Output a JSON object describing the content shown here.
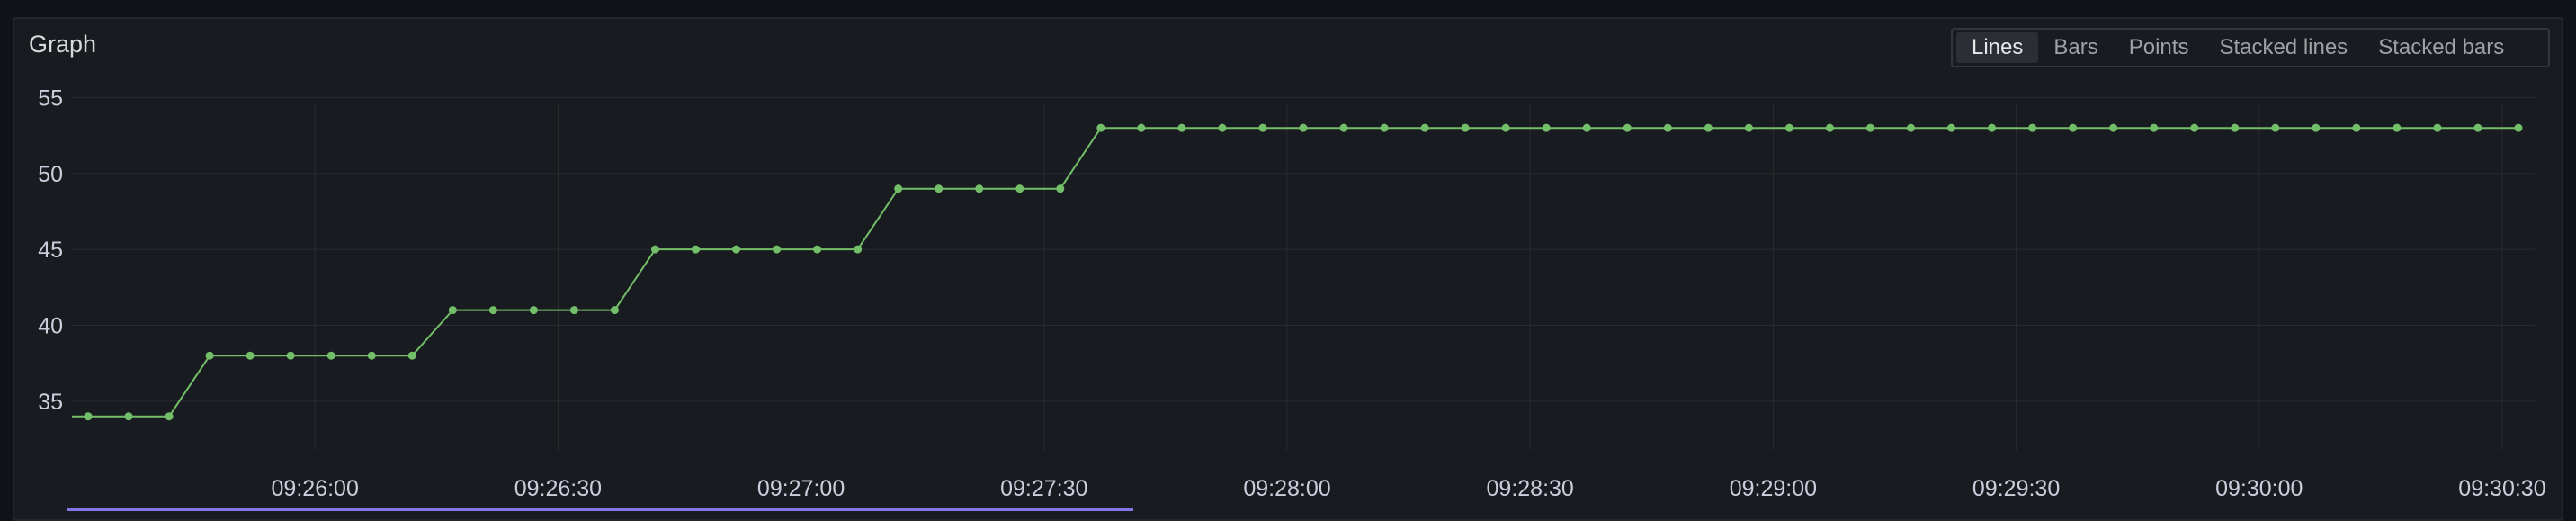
{
  "panel": {
    "title": "Graph"
  },
  "view_modes": {
    "selected": "Lines",
    "options": [
      "Lines",
      "Bars",
      "Points",
      "Stacked lines",
      "Stacked bars"
    ]
  },
  "colors": {
    "background": "#111217",
    "panel": "#181b1f",
    "grid": "#2a2c31",
    "series": "#73bf69",
    "text": "#ccccdc",
    "selection": "#8676ea"
  },
  "chart_data": {
    "type": "line",
    "title": "",
    "xlabel": "",
    "ylabel": "",
    "grid": true,
    "ylim": [
      32.5,
      55.5
    ],
    "y_ticks": [
      35,
      40,
      45,
      50,
      55
    ],
    "xlim": [
      "09:25:30",
      "09:30:34"
    ],
    "x_ticks": [
      "09:26:00",
      "09:26:30",
      "09:27:00",
      "09:27:30",
      "09:28:00",
      "09:28:30",
      "09:29:00",
      "09:29:30",
      "09:30:00",
      "09:30:30"
    ],
    "x": [
      "09:25:32",
      "09:25:37",
      "09:25:42",
      "09:25:47",
      "09:25:52",
      "09:25:57",
      "09:26:02",
      "09:26:07",
      "09:26:12",
      "09:26:17",
      "09:26:22",
      "09:26:27",
      "09:26:32",
      "09:26:37",
      "09:26:42",
      "09:26:47",
      "09:26:52",
      "09:26:57",
      "09:27:02",
      "09:27:07",
      "09:27:12",
      "09:27:17",
      "09:27:22",
      "09:27:27",
      "09:27:32",
      "09:27:37",
      "09:27:42",
      "09:27:47",
      "09:27:52",
      "09:27:57",
      "09:28:02",
      "09:28:07",
      "09:28:12",
      "09:28:17",
      "09:28:22",
      "09:28:27",
      "09:28:32",
      "09:28:37",
      "09:28:42",
      "09:28:47",
      "09:28:52",
      "09:28:57",
      "09:29:02",
      "09:29:07",
      "09:29:12",
      "09:29:17",
      "09:29:22",
      "09:29:27",
      "09:29:32",
      "09:29:37",
      "09:29:42",
      "09:29:47",
      "09:29:52",
      "09:29:57",
      "09:30:02",
      "09:30:07",
      "09:30:12",
      "09:30:17",
      "09:30:22",
      "09:30:27",
      "09:30:32"
    ],
    "series": [
      {
        "values": [
          34,
          34,
          34,
          38,
          38,
          38,
          38,
          38,
          38,
          41,
          41,
          41,
          41,
          41,
          45,
          45,
          45,
          45,
          45,
          45,
          49,
          49,
          49,
          49,
          49,
          53,
          53,
          53,
          53,
          53,
          53,
          53,
          53,
          53,
          53,
          53,
          53,
          53,
          53,
          53,
          53,
          53,
          53,
          53,
          53,
          53,
          53,
          53,
          53,
          53,
          53,
          53,
          53,
          53,
          53,
          53,
          53,
          53,
          53,
          53,
          53
        ]
      }
    ]
  }
}
